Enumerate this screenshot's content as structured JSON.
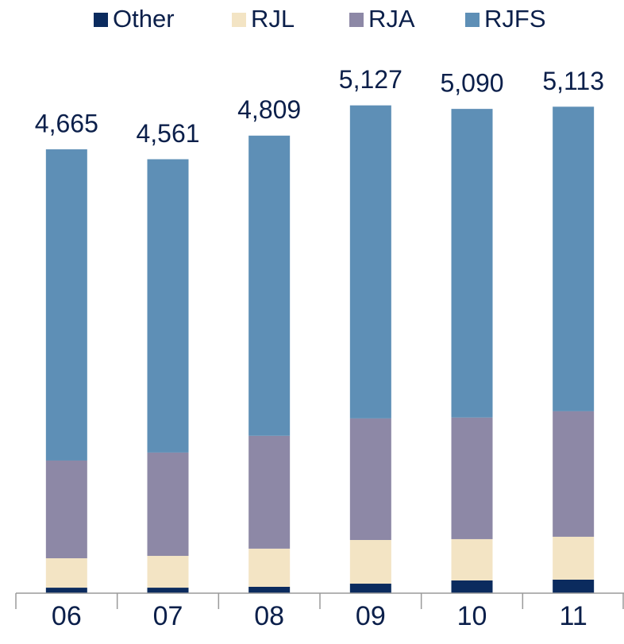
{
  "chart_data": {
    "type": "stacked_bar",
    "categories": [
      "06",
      "07",
      "08",
      "09",
      "10",
      "11"
    ],
    "series": [
      {
        "name": "Other",
        "color": "#0b2b5e",
        "values": [
          58,
          58,
          67,
          100,
          134,
          142
        ]
      },
      {
        "name": "RJL",
        "color": "#f3e4c4",
        "values": [
          309,
          334,
          401,
          459,
          434,
          451
        ]
      },
      {
        "name": "RJA",
        "color": "#8d88a6",
        "values": [
          1027,
          1086,
          1186,
          1278,
          1278,
          1319
        ]
      },
      {
        "name": "RJFS",
        "color": "#5e8fb6",
        "values": [
          3271,
          3083,
          3155,
          3290,
          3244,
          3201
        ]
      }
    ],
    "totals": [
      4665,
      4561,
      4809,
      5127,
      5090,
      5113
    ],
    "total_labels": [
      "4,665",
      "4,561",
      "4,809",
      "5,127",
      "5,090",
      "5,113"
    ],
    "ylim": [
      0,
      5500
    ],
    "legend": "top"
  }
}
